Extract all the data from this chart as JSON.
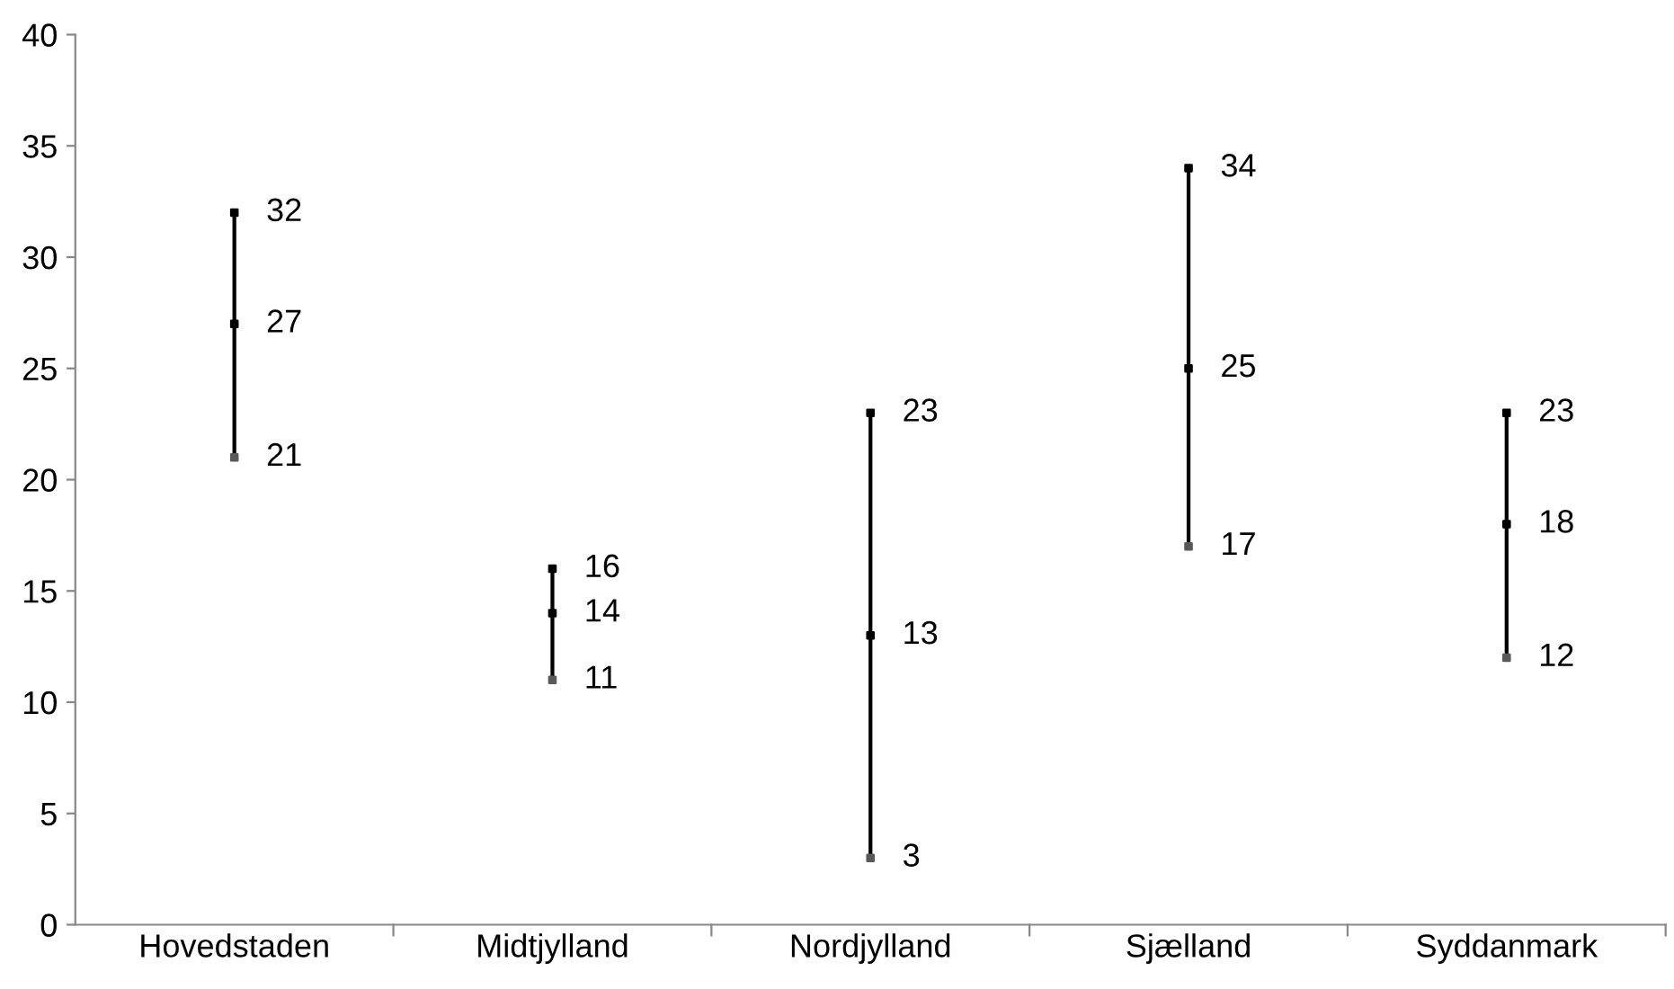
{
  "chart_data": {
    "type": "bar",
    "categories": [
      "Hovedstaden",
      "Midtjylland",
      "Nordjylland",
      "Sjælland",
      "Syddanmark"
    ],
    "series": [
      {
        "color": "#000000",
        "base": [
          21,
          11,
          3,
          17,
          12
        ],
        "values": [
          11,
          5,
          20,
          17,
          11
        ]
      },
      {
        "type": "scatter",
        "marker": "square",
        "color": "#000000",
        "values": [
          32,
          16,
          23,
          34,
          23
        ],
        "value_labels": [
          "32",
          "16",
          "23",
          "34",
          "23"
        ]
      },
      {
        "type": "scatter",
        "marker": "square",
        "color": "#000000",
        "values": [
          27,
          14,
          13,
          25,
          18
        ],
        "value_labels": [
          "27",
          "14",
          "13",
          "25",
          "18"
        ]
      },
      {
        "type": "scatter",
        "marker": "square",
        "color": "#595959",
        "values": [
          21,
          11,
          3,
          17,
          12
        ],
        "value_labels": [
          "21",
          "11",
          "3",
          "17",
          "12"
        ]
      }
    ],
    "ylim": [
      0,
      40
    ],
    "yticks": [
      0,
      5,
      10,
      15,
      20,
      25,
      30,
      35,
      40
    ],
    "grid": false,
    "legend": false
  }
}
